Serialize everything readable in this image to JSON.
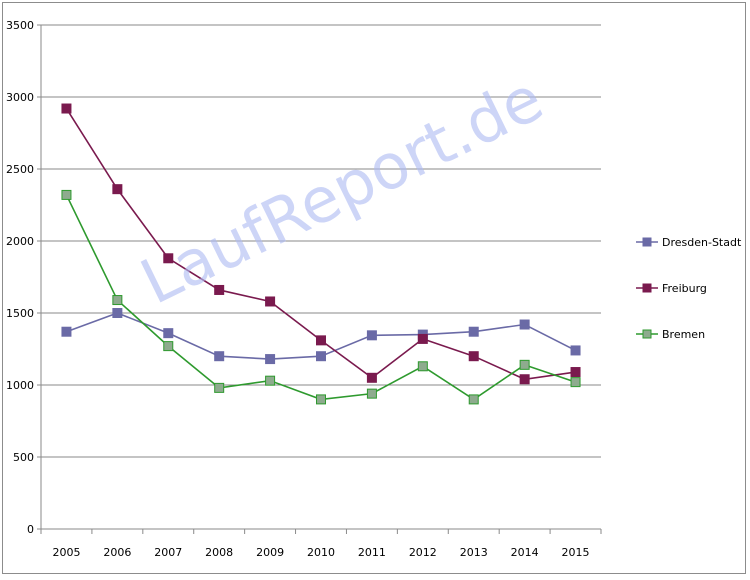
{
  "chart_data": {
    "type": "line",
    "title": "",
    "xlabel": "",
    "ylabel": "",
    "categories": [
      "2005",
      "2006",
      "2007",
      "2008",
      "2009",
      "2010",
      "2011",
      "2012",
      "2013",
      "2014",
      "2015"
    ],
    "ylim": [
      0,
      3500
    ],
    "yticks": [
      0,
      500,
      1000,
      1500,
      2000,
      2500,
      3000,
      3500
    ],
    "grid": "horizontal",
    "legend_position": "right",
    "series": [
      {
        "name": "Dresden-Stadt",
        "color": "#6a6aa6",
        "marker_fill": "#6a6aa6",
        "values": [
          1370,
          1500,
          1360,
          1200,
          1180,
          1200,
          1345,
          1350,
          1370,
          1420,
          1240
        ]
      },
      {
        "name": "Freiburg",
        "color": "#7a1a4e",
        "marker_fill": "#7a1a4e",
        "values": [
          2920,
          2360,
          1880,
          1660,
          1580,
          1310,
          1050,
          1320,
          1200,
          1040,
          1090
        ]
      },
      {
        "name": "Bremen",
        "color": "#2e9a2e",
        "marker_fill": "#8eab8e",
        "values": [
          2320,
          1590,
          1270,
          980,
          1030,
          900,
          940,
          1130,
          900,
          1140,
          1020
        ]
      }
    ]
  },
  "watermark": "LaufReport.de"
}
